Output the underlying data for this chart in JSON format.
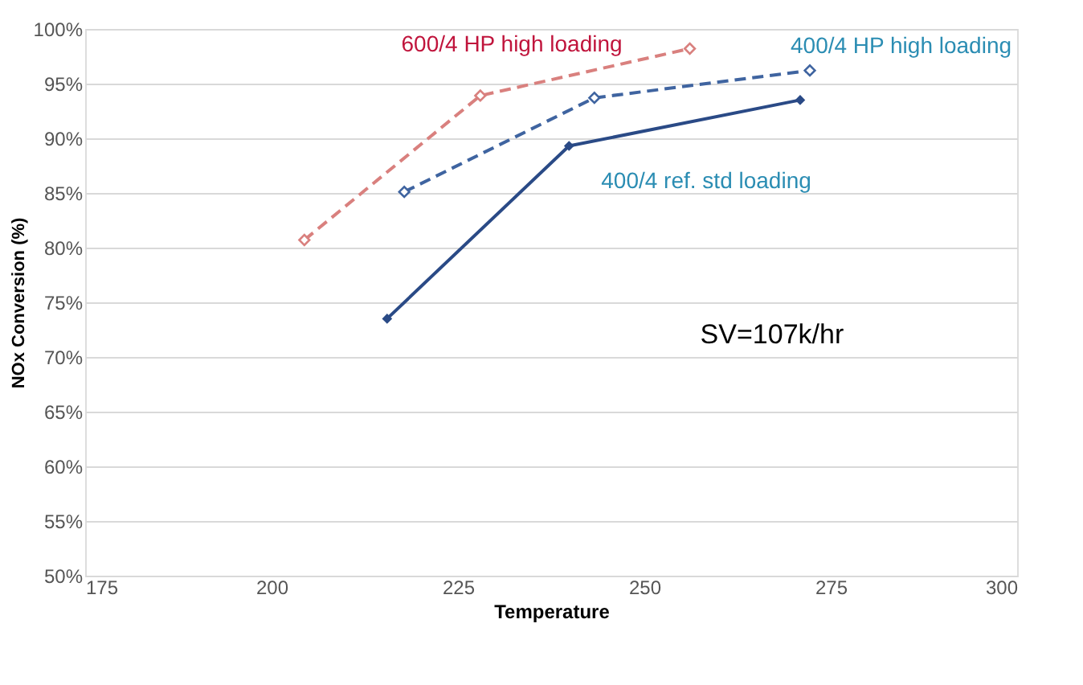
{
  "chart_data": {
    "type": "line",
    "xlabel": "Temperature",
    "ylabel": "NOx Conversion (%)",
    "xlim": [
      175,
      300
    ],
    "xticks": [
      175,
      200,
      225,
      250,
      275,
      300
    ],
    "ylim": [
      50,
      100
    ],
    "yticks": [
      {
        "value": 50,
        "label": "50%"
      },
      {
        "value": 55,
        "label": "55%"
      },
      {
        "value": 60,
        "label": "60%"
      },
      {
        "value": 65,
        "label": "65%"
      },
      {
        "value": 70,
        "label": "70%"
      },
      {
        "value": 75,
        "label": "75%"
      },
      {
        "value": 80,
        "label": "80%"
      },
      {
        "value": 85,
        "label": "85%"
      },
      {
        "value": 90,
        "label": "90%"
      },
      {
        "value": 95,
        "label": "95%"
      },
      {
        "value": 100,
        "label": "100%"
      }
    ],
    "grid": "y",
    "marker": "diamond",
    "series": [
      {
        "name": "600/4 HP high loading",
        "color": "#d9807e",
        "line_style": "dashed",
        "x": [
          204.4,
          228.0,
          256.1
        ],
        "values": [
          80.7,
          93.9,
          98.2
        ]
      },
      {
        "name": "400/4 HP high loading",
        "color": "#3f64a0",
        "line_style": "dashed",
        "x": [
          217.8,
          243.3,
          272.2
        ],
        "values": [
          85.1,
          93.7,
          96.2
        ]
      },
      {
        "name": "400/4 ref. std loading",
        "color": "#2a4a86",
        "line_style": "solid",
        "x": [
          215.5,
          239.9,
          270.9
        ],
        "values": [
          73.5,
          89.3,
          93.5
        ]
      }
    ],
    "annotations": [
      "SV=107k/hr"
    ]
  }
}
